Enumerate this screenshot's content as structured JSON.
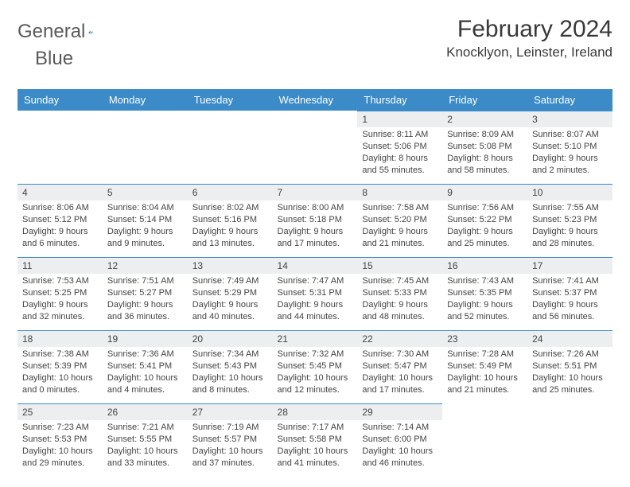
{
  "brand": {
    "line1": "General",
    "line2": "Blue"
  },
  "title": "February 2024",
  "location": "Knocklyon, Leinster, Ireland",
  "colors": {
    "header_bg": "#3b8bc9",
    "header_text": "#ffffff",
    "daynum_bg": "#eceef0",
    "daynum_border": "#3b8bc9",
    "text": "#444444",
    "logo_text": "#5a5a5a",
    "logo_accent": "#2f6fa8"
  },
  "dow": [
    "Sunday",
    "Monday",
    "Tuesday",
    "Wednesday",
    "Thursday",
    "Friday",
    "Saturday"
  ],
  "weeks": [
    [
      null,
      null,
      null,
      null,
      {
        "d": "1",
        "sr": "Sunrise: 8:11 AM",
        "ss": "Sunset: 5:06 PM",
        "dl1": "Daylight: 8 hours",
        "dl2": "and 55 minutes."
      },
      {
        "d": "2",
        "sr": "Sunrise: 8:09 AM",
        "ss": "Sunset: 5:08 PM",
        "dl1": "Daylight: 8 hours",
        "dl2": "and 58 minutes."
      },
      {
        "d": "3",
        "sr": "Sunrise: 8:07 AM",
        "ss": "Sunset: 5:10 PM",
        "dl1": "Daylight: 9 hours",
        "dl2": "and 2 minutes."
      }
    ],
    [
      {
        "d": "4",
        "sr": "Sunrise: 8:06 AM",
        "ss": "Sunset: 5:12 PM",
        "dl1": "Daylight: 9 hours",
        "dl2": "and 6 minutes."
      },
      {
        "d": "5",
        "sr": "Sunrise: 8:04 AM",
        "ss": "Sunset: 5:14 PM",
        "dl1": "Daylight: 9 hours",
        "dl2": "and 9 minutes."
      },
      {
        "d": "6",
        "sr": "Sunrise: 8:02 AM",
        "ss": "Sunset: 5:16 PM",
        "dl1": "Daylight: 9 hours",
        "dl2": "and 13 minutes."
      },
      {
        "d": "7",
        "sr": "Sunrise: 8:00 AM",
        "ss": "Sunset: 5:18 PM",
        "dl1": "Daylight: 9 hours",
        "dl2": "and 17 minutes."
      },
      {
        "d": "8",
        "sr": "Sunrise: 7:58 AM",
        "ss": "Sunset: 5:20 PM",
        "dl1": "Daylight: 9 hours",
        "dl2": "and 21 minutes."
      },
      {
        "d": "9",
        "sr": "Sunrise: 7:56 AM",
        "ss": "Sunset: 5:22 PM",
        "dl1": "Daylight: 9 hours",
        "dl2": "and 25 minutes."
      },
      {
        "d": "10",
        "sr": "Sunrise: 7:55 AM",
        "ss": "Sunset: 5:23 PM",
        "dl1": "Daylight: 9 hours",
        "dl2": "and 28 minutes."
      }
    ],
    [
      {
        "d": "11",
        "sr": "Sunrise: 7:53 AM",
        "ss": "Sunset: 5:25 PM",
        "dl1": "Daylight: 9 hours",
        "dl2": "and 32 minutes."
      },
      {
        "d": "12",
        "sr": "Sunrise: 7:51 AM",
        "ss": "Sunset: 5:27 PM",
        "dl1": "Daylight: 9 hours",
        "dl2": "and 36 minutes."
      },
      {
        "d": "13",
        "sr": "Sunrise: 7:49 AM",
        "ss": "Sunset: 5:29 PM",
        "dl1": "Daylight: 9 hours",
        "dl2": "and 40 minutes."
      },
      {
        "d": "14",
        "sr": "Sunrise: 7:47 AM",
        "ss": "Sunset: 5:31 PM",
        "dl1": "Daylight: 9 hours",
        "dl2": "and 44 minutes."
      },
      {
        "d": "15",
        "sr": "Sunrise: 7:45 AM",
        "ss": "Sunset: 5:33 PM",
        "dl1": "Daylight: 9 hours",
        "dl2": "and 48 minutes."
      },
      {
        "d": "16",
        "sr": "Sunrise: 7:43 AM",
        "ss": "Sunset: 5:35 PM",
        "dl1": "Daylight: 9 hours",
        "dl2": "and 52 minutes."
      },
      {
        "d": "17",
        "sr": "Sunrise: 7:41 AM",
        "ss": "Sunset: 5:37 PM",
        "dl1": "Daylight: 9 hours",
        "dl2": "and 56 minutes."
      }
    ],
    [
      {
        "d": "18",
        "sr": "Sunrise: 7:38 AM",
        "ss": "Sunset: 5:39 PM",
        "dl1": "Daylight: 10 hours",
        "dl2": "and 0 minutes."
      },
      {
        "d": "19",
        "sr": "Sunrise: 7:36 AM",
        "ss": "Sunset: 5:41 PM",
        "dl1": "Daylight: 10 hours",
        "dl2": "and 4 minutes."
      },
      {
        "d": "20",
        "sr": "Sunrise: 7:34 AM",
        "ss": "Sunset: 5:43 PM",
        "dl1": "Daylight: 10 hours",
        "dl2": "and 8 minutes."
      },
      {
        "d": "21",
        "sr": "Sunrise: 7:32 AM",
        "ss": "Sunset: 5:45 PM",
        "dl1": "Daylight: 10 hours",
        "dl2": "and 12 minutes."
      },
      {
        "d": "22",
        "sr": "Sunrise: 7:30 AM",
        "ss": "Sunset: 5:47 PM",
        "dl1": "Daylight: 10 hours",
        "dl2": "and 17 minutes."
      },
      {
        "d": "23",
        "sr": "Sunrise: 7:28 AM",
        "ss": "Sunset: 5:49 PM",
        "dl1": "Daylight: 10 hours",
        "dl2": "and 21 minutes."
      },
      {
        "d": "24",
        "sr": "Sunrise: 7:26 AM",
        "ss": "Sunset: 5:51 PM",
        "dl1": "Daylight: 10 hours",
        "dl2": "and 25 minutes."
      }
    ],
    [
      {
        "d": "25",
        "sr": "Sunrise: 7:23 AM",
        "ss": "Sunset: 5:53 PM",
        "dl1": "Daylight: 10 hours",
        "dl2": "and 29 minutes."
      },
      {
        "d": "26",
        "sr": "Sunrise: 7:21 AM",
        "ss": "Sunset: 5:55 PM",
        "dl1": "Daylight: 10 hours",
        "dl2": "and 33 minutes."
      },
      {
        "d": "27",
        "sr": "Sunrise: 7:19 AM",
        "ss": "Sunset: 5:57 PM",
        "dl1": "Daylight: 10 hours",
        "dl2": "and 37 minutes."
      },
      {
        "d": "28",
        "sr": "Sunrise: 7:17 AM",
        "ss": "Sunset: 5:58 PM",
        "dl1": "Daylight: 10 hours",
        "dl2": "and 41 minutes."
      },
      {
        "d": "29",
        "sr": "Sunrise: 7:14 AM",
        "ss": "Sunset: 6:00 PM",
        "dl1": "Daylight: 10 hours",
        "dl2": "and 46 minutes."
      },
      null,
      null
    ]
  ]
}
